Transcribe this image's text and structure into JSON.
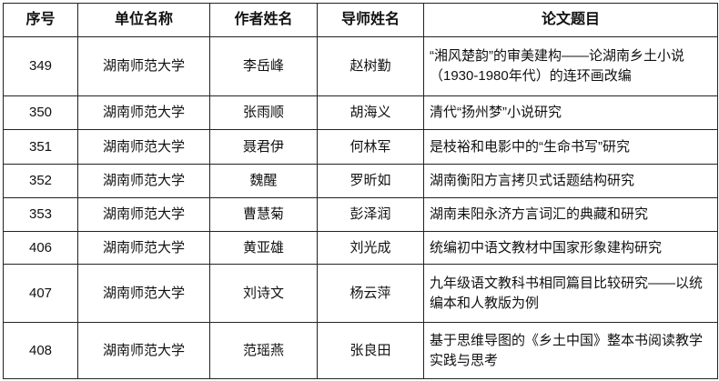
{
  "headers": [
    "序号",
    "单位名称",
    "作者姓名",
    "导师姓名",
    "论文题目"
  ],
  "rows": [
    {
      "no": "349",
      "unit": "湖南师范大学",
      "author": "李岳峰",
      "advisor": "赵树勤",
      "title": "“湘风楚韵”的审美建构——论湖南乡土小说（1930-1980年代）的连环画改编"
    },
    {
      "no": "350",
      "unit": "湖南师范大学",
      "author": "张雨顺",
      "advisor": "胡海义",
      "title": "清代“扬州梦”小说研究"
    },
    {
      "no": "351",
      "unit": "湖南师范大学",
      "author": "聂君伊",
      "advisor": "何林军",
      "title": "是枝裕和电影中的“生命书写”研究"
    },
    {
      "no": "352",
      "unit": "湖南师范大学",
      "author": "魏醒",
      "advisor": "罗昕如",
      "title": "湖南衡阳方言拷贝式话题结构研究"
    },
    {
      "no": "353",
      "unit": "湖南师范大学",
      "author": "曹慧菊",
      "advisor": "彭泽润",
      "title": "湖南耒阳永济方言词汇的典藏和研究"
    },
    {
      "no": "406",
      "unit": "湖南师范大学",
      "author": "黄亚雄",
      "advisor": "刘光成",
      "title": "统编初中语文教材中国家形象建构研究"
    },
    {
      "no": "407",
      "unit": "湖南师范大学",
      "author": "刘诗文",
      "advisor": "杨云萍",
      "title": "九年级语文教科书相同篇目比较研究——以统编本和人教版为例"
    },
    {
      "no": "408",
      "unit": "湖南师范大学",
      "author": "范瑶燕",
      "advisor": "张良田",
      "title": "基于思维导图的《乡土中国》整本书阅读教学实践与思考"
    }
  ]
}
